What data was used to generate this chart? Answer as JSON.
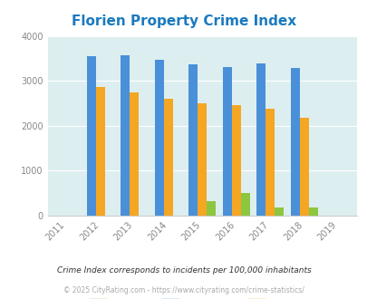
{
  "title": "Florien Property Crime Index",
  "years": [
    2011,
    2012,
    2013,
    2014,
    2015,
    2016,
    2017,
    2018,
    2019
  ],
  "data_years": [
    2012,
    2013,
    2014,
    2015,
    2016,
    2017,
    2018
  ],
  "florien": [
    0,
    0,
    0,
    310,
    490,
    170,
    170
  ],
  "louisiana": [
    3540,
    3560,
    3460,
    3360,
    3310,
    3390,
    3280
  ],
  "national": [
    2870,
    2730,
    2600,
    2500,
    2460,
    2380,
    2180
  ],
  "color_florien": "#8dc63f",
  "color_louisiana": "#4a90d9",
  "color_national": "#f5a623",
  "bg_color": "#ddeef0",
  "ylim": [
    0,
    4000
  ],
  "yticks": [
    0,
    1000,
    2000,
    3000,
    4000
  ],
  "title_color": "#1a7abf",
  "footer_note": "Crime Index corresponds to incidents per 100,000 inhabitants",
  "footer_copy": "© 2025 CityRating.com - https://www.cityrating.com/crime-statistics/",
  "bar_width": 0.27
}
